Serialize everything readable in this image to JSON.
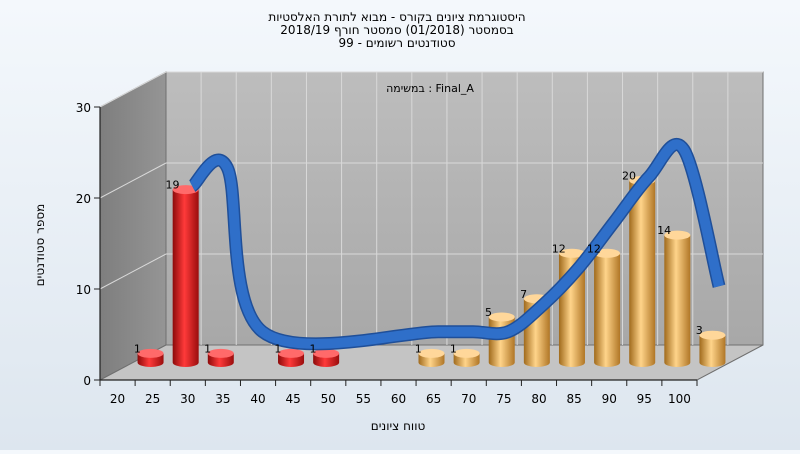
{
  "chart_data": {
    "type": "bar",
    "title_lines": [
      "היסטוגרמת ציונים בקורס - מבוא לתורת האלסטיות",
      "בסמסטר  (01/2018)  סמסטר חורף 2018/19",
      "סטודנטים רשומים - 99"
    ],
    "legend_label": "במשימה : Final_A",
    "xlabel": "טווח ציונים",
    "ylabel": "מספר סטודנטים",
    "ylim": [
      0,
      30
    ],
    "yticks": [
      0,
      10,
      20,
      30
    ],
    "xticks": [
      "20",
      "25",
      "30",
      "35",
      "40",
      "45",
      "50",
      "55",
      "60",
      "65",
      "70",
      "75",
      "80",
      "85",
      "90",
      "95",
      "100"
    ],
    "grid": true,
    "bars": [
      {
        "x": "20",
        "value": 1,
        "color": "red"
      },
      {
        "x": "25",
        "value": 19,
        "color": "red"
      },
      {
        "x": "30",
        "value": 1,
        "color": "red"
      },
      {
        "x": "40",
        "value": 1,
        "color": "red"
      },
      {
        "x": "45",
        "value": 1,
        "color": "red"
      },
      {
        "x": "60",
        "value": 1,
        "color": "gold"
      },
      {
        "x": "65",
        "value": 1,
        "color": "gold"
      },
      {
        "x": "70",
        "value": 5,
        "color": "gold"
      },
      {
        "x": "75",
        "value": 7,
        "color": "gold"
      },
      {
        "x": "80",
        "value": 12,
        "color": "gold"
      },
      {
        "x": "85",
        "value": 12,
        "color": "gold"
      },
      {
        "x": "90",
        "value": 20,
        "color": "gold"
      },
      {
        "x": "95",
        "value": 14,
        "color": "gold"
      },
      {
        "x": "100",
        "value": 3,
        "color": "gold"
      }
    ],
    "curve": {
      "x": [
        "25",
        "30",
        "35",
        "60",
        "65",
        "70",
        "75",
        "80",
        "85",
        "90",
        "95",
        "100"
      ],
      "values": [
        19,
        21,
        3,
        3,
        3,
        3,
        6,
        10,
        15,
        20,
        23,
        8
      ]
    },
    "colors": {
      "red": "#e01818",
      "gold": "#e8a63c",
      "curve": "#2f6fc9",
      "wall_back": "#b3b3b3",
      "wall_left": "#8c8c8c",
      "floor": "#c4c4c4"
    }
  }
}
